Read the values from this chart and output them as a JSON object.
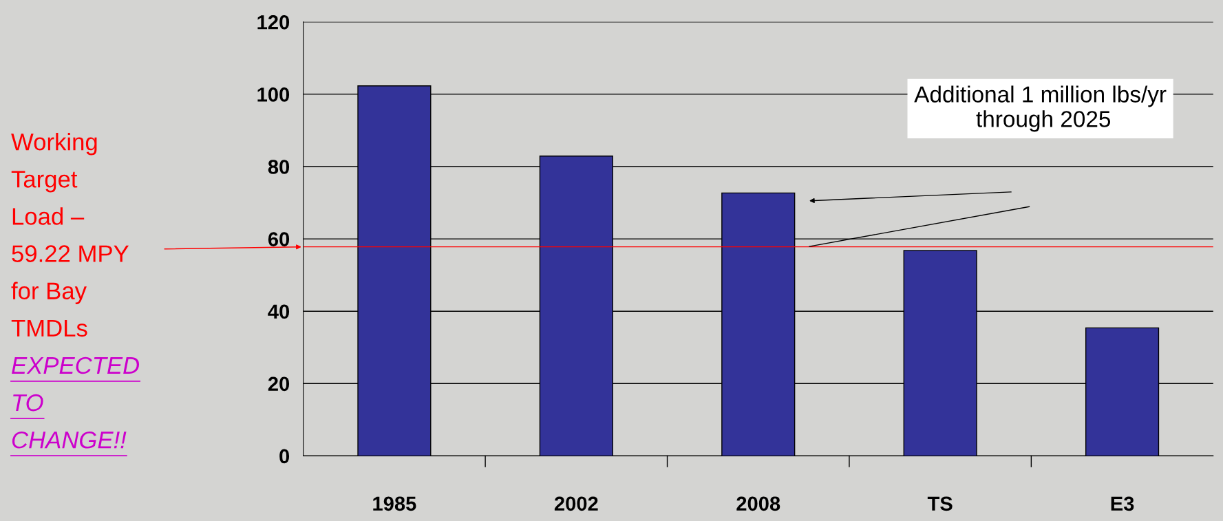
{
  "chart_data": {
    "type": "bar",
    "categories": [
      "1985",
      "2002",
      "2008",
      "TS",
      "E3"
    ],
    "values": [
      102.3,
      82.9,
      72.7,
      56.8,
      35.4
    ],
    "color": "#333399",
    "ylim": [
      0,
      120
    ],
    "yticks": [
      0,
      20,
      40,
      60,
      80,
      100,
      120
    ],
    "grid": "y",
    "ref_lines": [
      {
        "axis": "y",
        "value": 57.8,
        "color": "#ff0000"
      }
    ],
    "annotations": [
      "Working\nTarget\nLoad –\n59.22 MPY\nfor Bay\nTMDLs",
      "EXPECTED\nTO\nCHANGE!!",
      "Additional 1 million lbs/yr\n through 2025"
    ]
  }
}
